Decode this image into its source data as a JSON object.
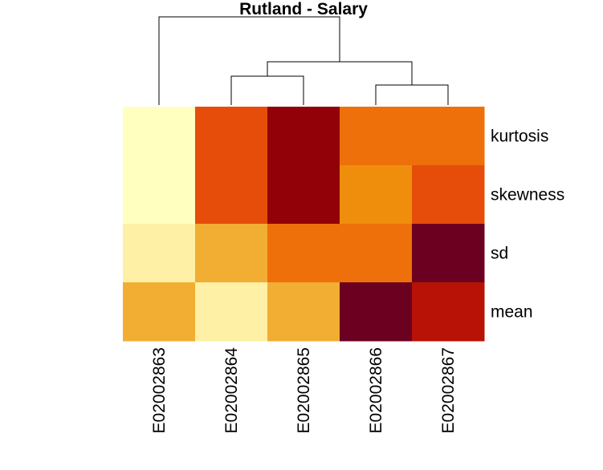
{
  "chart_data": {
    "type": "heatmap",
    "title": "Rutland - Salary",
    "columns": [
      "E02002863",
      "E02002864",
      "E02002865",
      "E02002866",
      "E02002867"
    ],
    "rows": [
      "kurtosis",
      "skewness",
      "sd",
      "mean"
    ],
    "cell_colors": [
      [
        "#FFFFC0",
        "#E64D0A",
        "#920008",
        "#ED700B",
        "#ED700B"
      ],
      [
        "#FFFFC0",
        "#E64D0A",
        "#920008",
        "#EF8E0D",
        "#E64D0A"
      ],
      [
        "#FEF0A4",
        "#F2AE33",
        "#ED700B",
        "#ED700B",
        "#6C0020"
      ],
      [
        "#F2AE33",
        "#FEF0A4",
        "#F2AE33",
        "#6C0020",
        "#B71205"
      ]
    ],
    "palette": "heat (light yellow = low, dark red = high)",
    "column_dendrogram": "E02002863 | ((E02002864, E02002865), (E02002866, E02002867))"
  }
}
